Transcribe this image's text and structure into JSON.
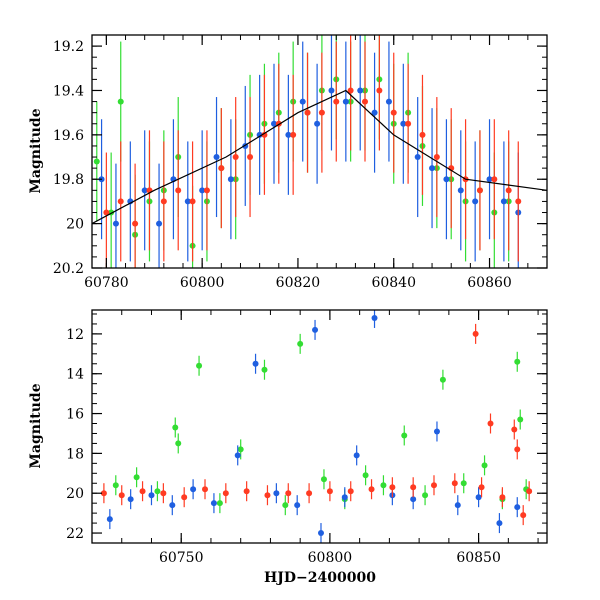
{
  "chart_data": [
    {
      "panel": "top",
      "type": "scatter",
      "title": "",
      "xlabel": "",
      "ylabel": "Magnitude",
      "xlim": [
        60777,
        60872
      ],
      "ylim": [
        20.2,
        19.15
      ],
      "y_inverted": true,
      "grid": false,
      "xticks": [
        60780,
        60800,
        60820,
        60840,
        60860
      ],
      "xtick_labels": [
        "60780",
        "60800",
        "60820",
        "60840",
        "60860"
      ],
      "yticks": [
        19.2,
        19.4,
        19.6,
        19.8,
        20,
        20.2
      ],
      "ytick_labels": [
        "19.2",
        "19.4",
        "19.6",
        "19.8",
        "20",
        "20.2"
      ],
      "series": [
        {
          "color": "#33dd33",
          "points": [
            [
              60778,
              19.72
            ],
            [
              60781,
              19.95
            ],
            [
              60783,
              19.45
            ],
            [
              60786,
              20.05
            ],
            [
              60789,
              19.9
            ],
            [
              60792,
              19.85
            ],
            [
              60795,
              19.7
            ],
            [
              60798,
              20.1
            ],
            [
              60801,
              19.9
            ],
            [
              60804,
              19.75
            ],
            [
              60807,
              19.8
            ],
            [
              60810,
              19.6
            ],
            [
              60813,
              19.55
            ],
            [
              60816,
              19.5
            ],
            [
              60819,
              19.45
            ],
            [
              60822,
              19.5
            ],
            [
              60825,
              19.4
            ],
            [
              60828,
              19.35
            ],
            [
              60831,
              19.45
            ],
            [
              60834,
              19.4
            ],
            [
              60837,
              19.35
            ],
            [
              60840,
              19.55
            ],
            [
              60843,
              19.5
            ],
            [
              60846,
              19.65
            ],
            [
              60849,
              19.75
            ],
            [
              60852,
              19.8
            ],
            [
              60855,
              19.9
            ],
            [
              60858,
              19.85
            ],
            [
              60861,
              19.95
            ],
            [
              60864,
              19.9
            ]
          ]
        },
        {
          "color": "#1f5fe0",
          "points": [
            [
              60779,
              19.8
            ],
            [
              60782,
              20.0
            ],
            [
              60785,
              19.9
            ],
            [
              60788,
              19.85
            ],
            [
              60791,
              20.0
            ],
            [
              60794,
              19.8
            ],
            [
              60797,
              19.9
            ],
            [
              60800,
              19.85
            ],
            [
              60803,
              19.7
            ],
            [
              60806,
              19.8
            ],
            [
              60809,
              19.65
            ],
            [
              60812,
              19.6
            ],
            [
              60815,
              19.55
            ],
            [
              60818,
              19.6
            ],
            [
              60821,
              19.45
            ],
            [
              60824,
              19.55
            ],
            [
              60827,
              19.4
            ],
            [
              60830,
              19.45
            ],
            [
              60833,
              19.4
            ],
            [
              60836,
              19.5
            ],
            [
              60839,
              19.45
            ],
            [
              60842,
              19.55
            ],
            [
              60845,
              19.7
            ],
            [
              60848,
              19.75
            ],
            [
              60851,
              19.8
            ],
            [
              60854,
              19.85
            ],
            [
              60857,
              19.9
            ],
            [
              60860,
              19.8
            ],
            [
              60863,
              19.9
            ],
            [
              60866,
              19.95
            ]
          ]
        },
        {
          "color": "#ff3b22",
          "points": [
            [
              60780,
              19.95
            ],
            [
              60783,
              19.9
            ],
            [
              60786,
              20.0
            ],
            [
              60789,
              19.85
            ],
            [
              60792,
              19.9
            ],
            [
              60795,
              19.85
            ],
            [
              60798,
              19.9
            ],
            [
              60801,
              19.85
            ],
            [
              60804,
              19.75
            ],
            [
              60807,
              19.7
            ],
            [
              60810,
              19.7
            ],
            [
              60813,
              19.6
            ],
            [
              60816,
              19.55
            ],
            [
              60819,
              19.6
            ],
            [
              60822,
              19.5
            ],
            [
              60825,
              19.5
            ],
            [
              60828,
              19.45
            ],
            [
              60831,
              19.4
            ],
            [
              60834,
              19.45
            ],
            [
              60837,
              19.4
            ],
            [
              60840,
              19.5
            ],
            [
              60843,
              19.55
            ],
            [
              60846,
              19.6
            ],
            [
              60849,
              19.7
            ],
            [
              60852,
              19.75
            ],
            [
              60855,
              19.8
            ],
            [
              60858,
              19.85
            ],
            [
              60861,
              19.8
            ],
            [
              60864,
              19.85
            ],
            [
              60866,
              19.9
            ]
          ]
        }
      ],
      "curve": [
        [
          60777,
          20.0
        ],
        [
          60790,
          19.85
        ],
        [
          60805,
          19.7
        ],
        [
          60820,
          19.5
        ],
        [
          60830,
          19.4
        ],
        [
          60840,
          19.6
        ],
        [
          60855,
          19.8
        ],
        [
          60872,
          19.85
        ]
      ]
    },
    {
      "panel": "bottom",
      "type": "scatter",
      "title": "",
      "xlabel": "HJD−2400000",
      "ylabel": "Magnitude",
      "xlim": [
        60720,
        60873
      ],
      "ylim": [
        22.5,
        10.8
      ],
      "y_inverted": true,
      "grid": false,
      "xticks": [
        60750,
        60800,
        60850
      ],
      "xtick_labels": [
        "60750",
        "60800",
        "60850"
      ],
      "yticks": [
        12,
        14,
        16,
        18,
        20,
        22
      ],
      "ytick_labels": [
        "12",
        "14",
        "16",
        "18",
        "20",
        "22"
      ],
      "series": [
        {
          "color": "#33dd33",
          "points": [
            [
              60728,
              19.6
            ],
            [
              60735,
              19.2
            ],
            [
              60742,
              19.9
            ],
            [
              60748,
              16.7
            ],
            [
              60749,
              17.5
            ],
            [
              60756,
              13.6
            ],
            [
              60763,
              20.5
            ],
            [
              60770,
              17.8
            ],
            [
              60778,
              13.8
            ],
            [
              60785,
              20.6
            ],
            [
              60790,
              12.5
            ],
            [
              60798,
              19.3
            ],
            [
              60805,
              20.3
            ],
            [
              60812,
              19.1
            ],
            [
              60818,
              19.6
            ],
            [
              60825,
              17.1
            ],
            [
              60832,
              20.1
            ],
            [
              60838,
              14.3
            ],
            [
              60845,
              19.5
            ],
            [
              60852,
              18.6
            ],
            [
              60858,
              20.3
            ],
            [
              60863,
              13.4
            ],
            [
              60864,
              16.3
            ],
            [
              60866,
              19.8
            ]
          ]
        },
        {
          "color": "#1f5fe0",
          "points": [
            [
              60726,
              21.3
            ],
            [
              60733,
              20.3
            ],
            [
              60740,
              20.1
            ],
            [
              60747,
              20.6
            ],
            [
              60754,
              19.8
            ],
            [
              60761,
              20.5
            ],
            [
              60769,
              18.1
            ],
            [
              60775,
              13.5
            ],
            [
              60782,
              20.0
            ],
            [
              60789,
              20.6
            ],
            [
              60795,
              11.8
            ],
            [
              60797,
              22.0
            ],
            [
              60805,
              20.2
            ],
            [
              60809,
              18.1
            ],
            [
              60815,
              11.2
            ],
            [
              60821,
              20.1
            ],
            [
              60828,
              20.3
            ],
            [
              60836,
              16.9
            ],
            [
              60843,
              20.6
            ],
            [
              60850,
              20.2
            ],
            [
              60857,
              21.5
            ],
            [
              60863,
              20.7
            ]
          ]
        },
        {
          "color": "#ff3b22",
          "points": [
            [
              60724,
              20.0
            ],
            [
              60730,
              20.1
            ],
            [
              60737,
              19.9
            ],
            [
              60744,
              20.0
            ],
            [
              60751,
              20.2
            ],
            [
              60758,
              19.8
            ],
            [
              60765,
              20.0
            ],
            [
              60772,
              19.9
            ],
            [
              60779,
              20.1
            ],
            [
              60786,
              20.0
            ],
            [
              60793,
              20.0
            ],
            [
              60800,
              19.9
            ],
            [
              60807,
              19.9
            ],
            [
              60814,
              19.8
            ],
            [
              60821,
              19.7
            ],
            [
              60828,
              19.7
            ],
            [
              60835,
              19.6
            ],
            [
              60842,
              19.5
            ],
            [
              60849,
              12.0
            ],
            [
              60851,
              19.7
            ],
            [
              60854,
              16.5
            ],
            [
              60858,
              20.2
            ],
            [
              60862,
              16.8
            ],
            [
              60863,
              17.8
            ],
            [
              60865,
              21.1
            ],
            [
              60867,
              19.9
            ]
          ]
        }
      ]
    }
  ]
}
